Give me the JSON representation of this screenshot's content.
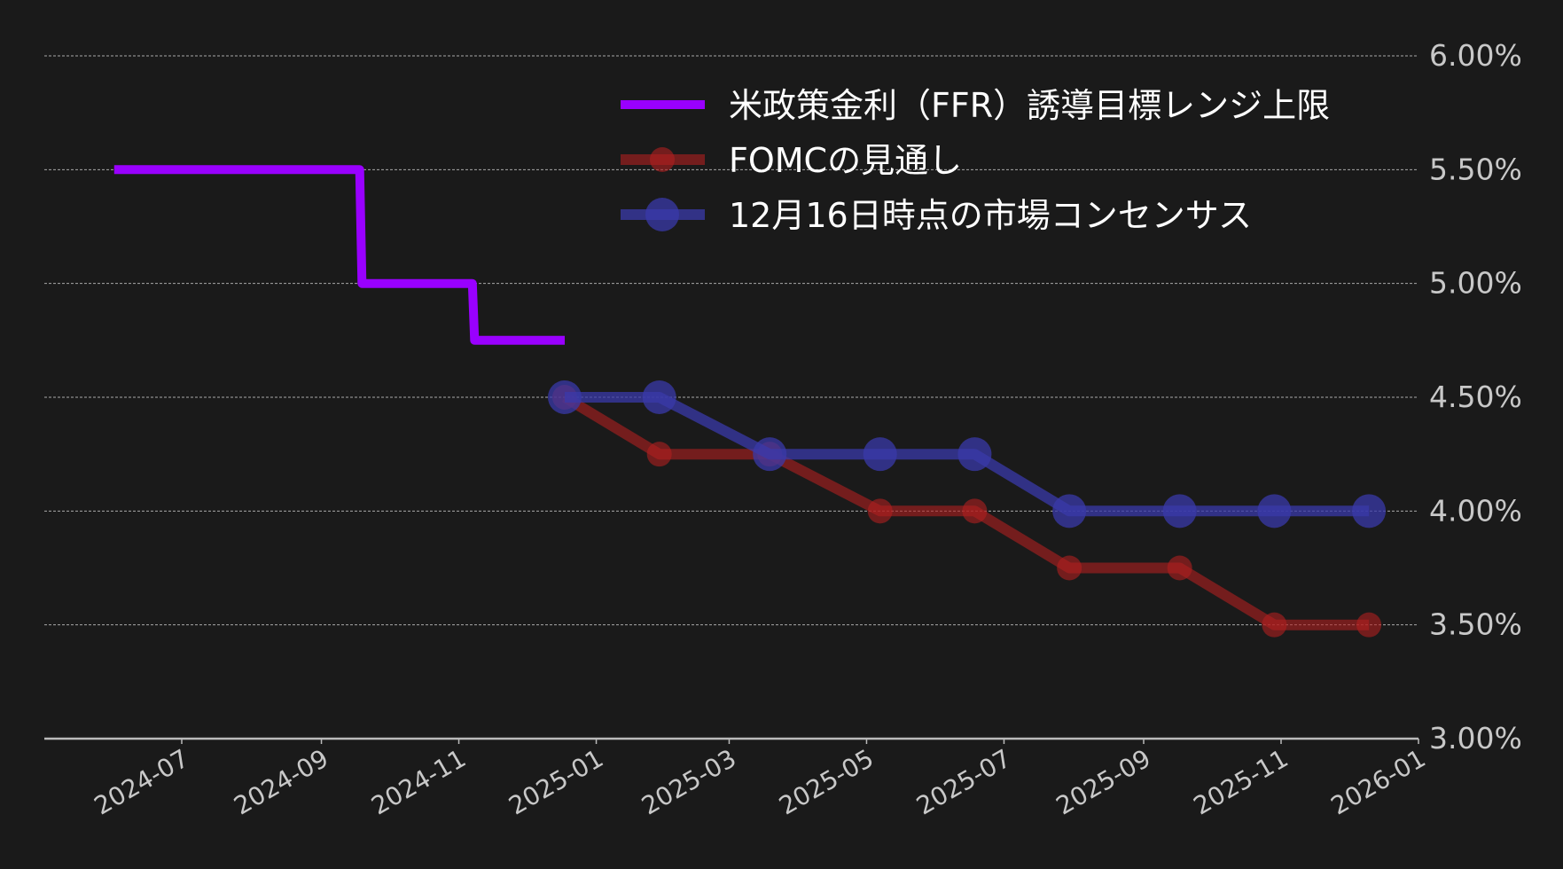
{
  "chart_data": {
    "type": "line",
    "title": "",
    "xlabel": "",
    "ylabel": "",
    "x_ticks": [
      "2024-07",
      "2024-09",
      "2024-11",
      "2025-01",
      "2025-03",
      "2025-05",
      "2025-07",
      "2025-09",
      "2025-11",
      "2026-01"
    ],
    "y_ticks": [
      "3.00%",
      "3.50%",
      "4.00%",
      "4.50%",
      "5.00%",
      "5.50%",
      "6.00%"
    ],
    "xlim": [
      "2024-05-01",
      "2026-01-01"
    ],
    "ylim": [
      3.0,
      6.0
    ],
    "y_axis_side": "right",
    "grid": "horizontal dashed",
    "legend_position": "top-right",
    "series": [
      {
        "name": "米政策金利（FFR）誘導目標レンジ上限",
        "kind": "step",
        "color": "#9900ff",
        "points": [
          {
            "x": "2024-06-01",
            "y": 5.5
          },
          {
            "x": "2024-09-18",
            "y": 5.5
          },
          {
            "x": "2024-09-19",
            "y": 5.0
          },
          {
            "x": "2024-11-07",
            "y": 5.0
          },
          {
            "x": "2024-11-08",
            "y": 4.75
          },
          {
            "x": "2024-12-18",
            "y": 4.75
          }
        ]
      },
      {
        "name": "FOMCの見通し",
        "kind": "line-marker",
        "color": "#b02020",
        "points": [
          {
            "x": "2024-12-18",
            "y": 4.5
          },
          {
            "x": "2025-01-29",
            "y": 4.25
          },
          {
            "x": "2025-03-19",
            "y": 4.25
          },
          {
            "x": "2025-05-07",
            "y": 4.0
          },
          {
            "x": "2025-06-18",
            "y": 4.0
          },
          {
            "x": "2025-07-30",
            "y": 3.75
          },
          {
            "x": "2025-09-17",
            "y": 3.75
          },
          {
            "x": "2025-10-29",
            "y": 3.5
          },
          {
            "x": "2025-12-10",
            "y": 3.5
          }
        ]
      },
      {
        "name": "12月16日時点の市場コンセンサス",
        "kind": "line-marker",
        "color": "#3a3aaa",
        "points": [
          {
            "x": "2024-12-18",
            "y": 4.5
          },
          {
            "x": "2025-01-29",
            "y": 4.5
          },
          {
            "x": "2025-03-19",
            "y": 4.25
          },
          {
            "x": "2025-05-07",
            "y": 4.25
          },
          {
            "x": "2025-06-18",
            "y": 4.25
          },
          {
            "x": "2025-07-30",
            "y": 4.0
          },
          {
            "x": "2025-09-17",
            "y": 4.0
          },
          {
            "x": "2025-10-29",
            "y": 4.0
          },
          {
            "x": "2025-12-10",
            "y": 4.0
          }
        ]
      }
    ]
  },
  "colors": {
    "background": "#1a1a1a",
    "text": "#c8c8c8",
    "legend_text": "#ffffff",
    "grid": "#cccccc",
    "axis": "#bbbbbb"
  }
}
